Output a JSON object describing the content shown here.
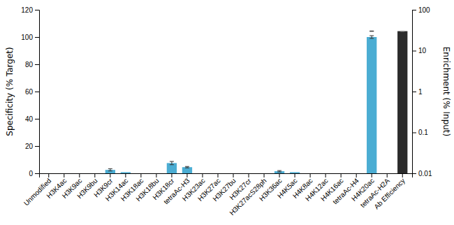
{
  "chart_data": {
    "type": "bar",
    "categories": [
      "Unmodified",
      "H3K4ac",
      "H3K9ac",
      "H3K9bu",
      "H3K9cr",
      "H3K14ac",
      "H3K18ac",
      "H3K18bu",
      "H3K18cr",
      "tetraAc-H3",
      "H3K23ac",
      "H3K27ac",
      "H3K27bu",
      "H3K27cr",
      "H3K27acS28ph",
      "H3K36ac",
      "H4K5ac",
      "H4K8ac",
      "H4K12ac",
      "H4K16ac",
      "tetraAc-H4",
      "H4K20ac",
      "tetraAc-H2A",
      "Ab Efficiency"
    ],
    "y_label": "Specificity (% Target)",
    "y2_label": "Enrichment (% Input)",
    "ylim": [
      0,
      120
    ],
    "yticks": [
      0,
      20,
      40,
      60,
      80,
      100,
      120
    ],
    "y2lim": [
      0.01,
      100
    ],
    "y2ticks": [
      0.01,
      0.1,
      1,
      10,
      100
    ],
    "log": "y2",
    "grid": false,
    "series": [
      {
        "color": "#4badd3",
        "values": [
          0.0,
          0.0,
          0.0,
          0.0,
          2.5,
          0.8,
          0.0,
          0.0,
          7.5,
          4.5,
          0.0,
          0.0,
          0.0,
          0.0,
          0.0,
          1.5,
          0.8,
          0.0,
          0.0,
          0.0,
          0.0,
          100.0,
          0.0,
          null
        ],
        "errors": [
          0.0,
          0.0,
          0.0,
          0.0,
          0.8,
          0.0,
          0.0,
          0.0,
          1.2,
          0.5,
          0.0,
          0.0,
          0.0,
          0.0,
          0.0,
          0.5,
          0.0,
          0.0,
          0.0,
          0.0,
          0.0,
          1.0,
          0.0,
          null
        ]
      },
      {
        "color": "#2b2b2b",
        "axis": "y2",
        "values": [
          null,
          null,
          null,
          null,
          null,
          null,
          null,
          null,
          null,
          null,
          null,
          null,
          null,
          null,
          null,
          null,
          null,
          null,
          null,
          null,
          null,
          null,
          null,
          30.0
        ],
        "errors": [
          null,
          null,
          null,
          null,
          null,
          null,
          null,
          null,
          null,
          null,
          null,
          null,
          null,
          null,
          null,
          null,
          null,
          null,
          null,
          null,
          null,
          null,
          null,
          0.3
        ]
      },
      {
        "type": "errorbar",
        "axis": "y2",
        "values": [
          null,
          null,
          null,
          null,
          null,
          null,
          null,
          null,
          null,
          null,
          null,
          null,
          null,
          null,
          null,
          null,
          null,
          null,
          null,
          null,
          null,
          30.0,
          null,
          null
        ],
        "errors": [
          null,
          null,
          null,
          null,
          null,
          null,
          null,
          null,
          null,
          null,
          null,
          null,
          null,
          null,
          null,
          null,
          null,
          null,
          null,
          null,
          null,
          0.3,
          null,
          null
        ]
      }
    ]
  }
}
